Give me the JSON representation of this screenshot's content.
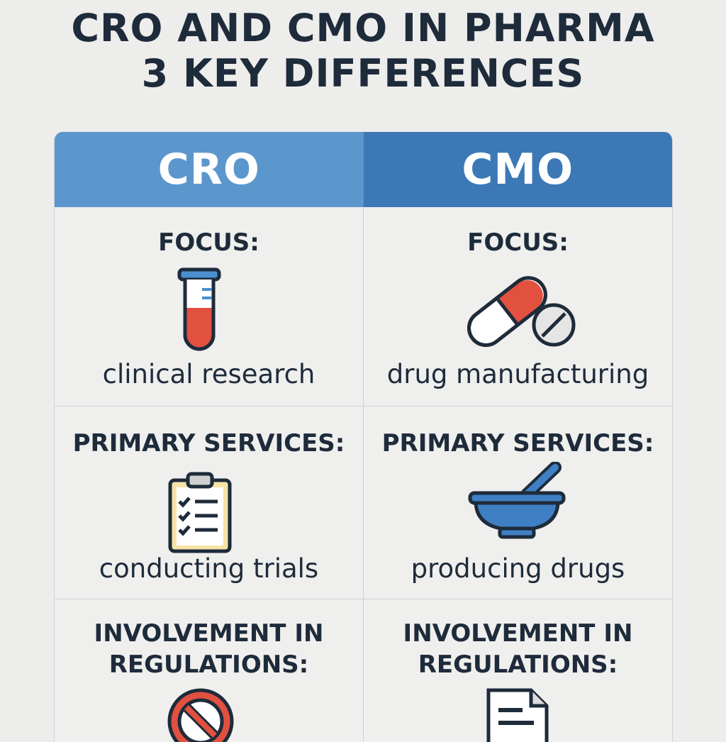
{
  "title": {
    "line1": "CRO AND CMO IN PHARMA",
    "line2": "3 KEY DIFFERENCES"
  },
  "columns": [
    "CRO",
    "CMO"
  ],
  "rows": [
    {
      "label": "FOCUS:",
      "cro": {
        "text": "clinical research",
        "icon": "test-tube-icon"
      },
      "cmo": {
        "text": "drug manufacturing",
        "icon": "pill-capsule-icon"
      }
    },
    {
      "label": "PRIMARY SERVICES:",
      "cro": {
        "text": "conducting trials",
        "icon": "clipboard-checklist-icon"
      },
      "cmo": {
        "text": "producing drugs",
        "icon": "mortar-pestle-icon"
      }
    },
    {
      "label_line1": "INVOLVEMENT IN",
      "label_line2": "REGULATIONS:",
      "cro": {
        "icon": "prohibited-icon"
      },
      "cmo": {
        "icon": "document-icon"
      }
    }
  ],
  "colors": {
    "background": "#ededec",
    "cro_header": "#5b97cd",
    "cmo_header": "#3d78b6",
    "accent_red": "#e2503f",
    "title_text": "#1e2b3a"
  }
}
